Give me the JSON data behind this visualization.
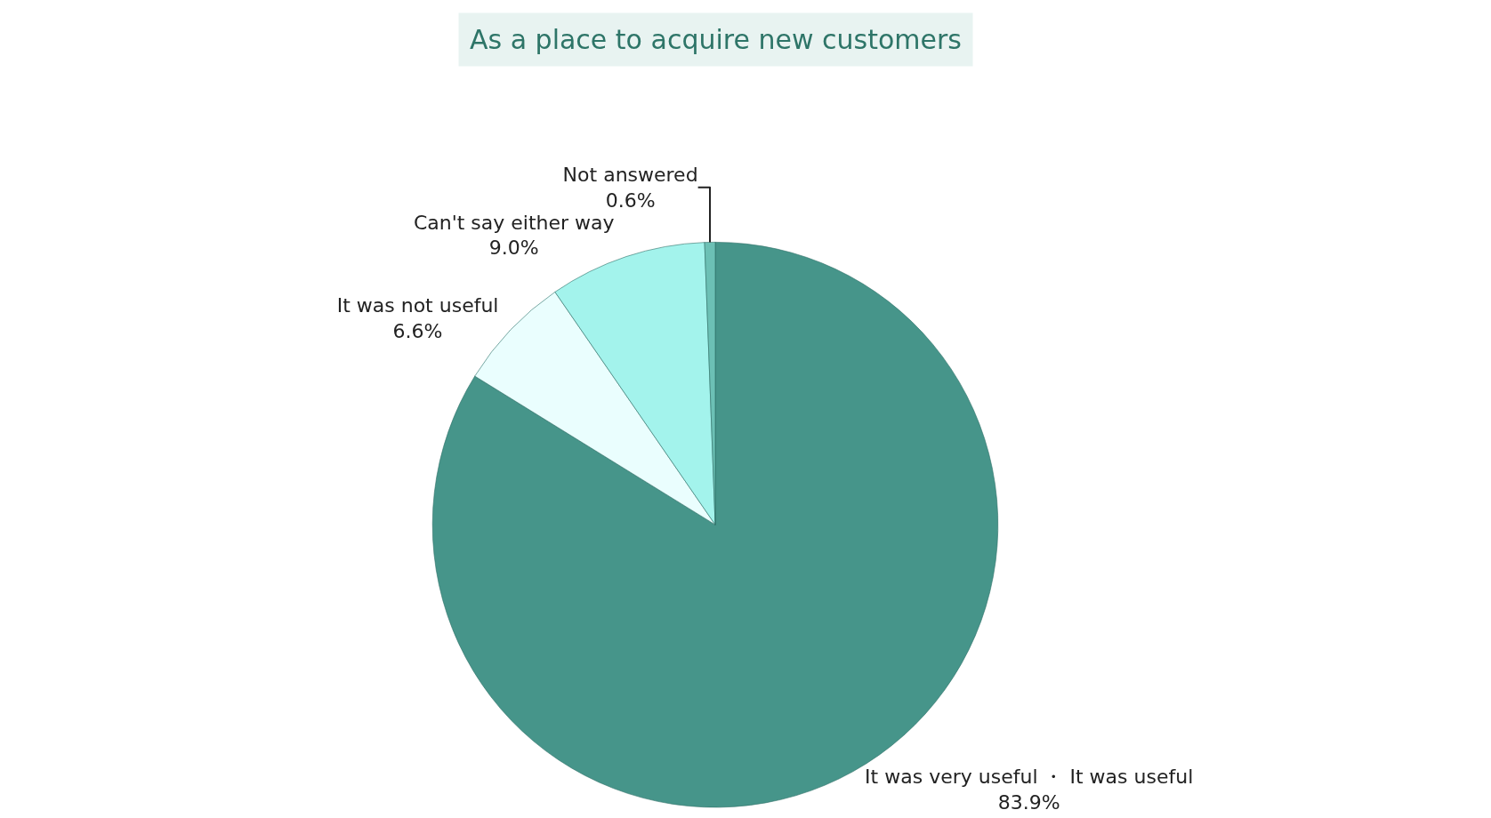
{
  "chart_data": {
    "type": "pie",
    "title": "As a place to acquire new customers",
    "categories": [
      "It was very useful ・ It was useful",
      "It was not useful",
      "Can't say either way",
      "Not answered"
    ],
    "values": [
      83.9,
      6.6,
      9.0,
      0.6
    ],
    "value_labels": [
      "83.9%",
      "6.6%",
      "9.0%",
      "0.6%"
    ],
    "colors": [
      "#46958a",
      "#eafefe",
      "#a3f3ec",
      "#6cc0b5"
    ],
    "legend": false
  }
}
